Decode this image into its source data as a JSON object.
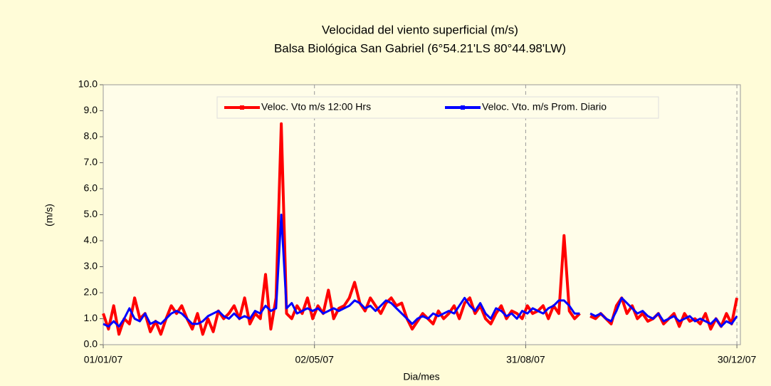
{
  "chart_data": {
    "type": "line",
    "title": "Velocidad del viento superficial  (m/s)",
    "subtitle": "Balsa  Biológica San Gabriel (6°54.21'LS 80°44.98'LW)",
    "xlabel": "Dia/mes",
    "ylabel": "(m/s)",
    "x": [
      1,
      4,
      7,
      10,
      13,
      16,
      19,
      22,
      25,
      28,
      31,
      34,
      37,
      40,
      43,
      46,
      49,
      52,
      55,
      58,
      61,
      64,
      67,
      70,
      73,
      76,
      79,
      82,
      85,
      88,
      91,
      94,
      97,
      100,
      103,
      106,
      109,
      112,
      115,
      118,
      121,
      124,
      127,
      130,
      133,
      136,
      139,
      142,
      145,
      148,
      151,
      154,
      157,
      160,
      163,
      166,
      169,
      172,
      175,
      178,
      181,
      184,
      187,
      190,
      193,
      196,
      199,
      202,
      205,
      208,
      211,
      214,
      217,
      220,
      223,
      226,
      229,
      232,
      235,
      238,
      241,
      244,
      247,
      250,
      253,
      256,
      259,
      262,
      265,
      268,
      271,
      274,
      277,
      280,
      283,
      286,
      289,
      292,
      295,
      298,
      301,
      304,
      307,
      310,
      313,
      316,
      319,
      322,
      325,
      328,
      331,
      334,
      337,
      340,
      343,
      346,
      349,
      352,
      355,
      358,
      361,
      364
    ],
    "series": [
      {
        "name": "Veloc. Vto m/s 12:00 Hrs",
        "color": "#ff0000",
        "values": [
          1.2,
          0.6,
          1.5,
          0.4,
          1.0,
          0.8,
          1.8,
          1.0,
          1.2,
          0.5,
          0.9,
          0.4,
          1.0,
          1.5,
          1.2,
          1.5,
          1.0,
          0.6,
          1.2,
          0.4,
          1.0,
          0.5,
          1.3,
          1.0,
          1.2,
          1.5,
          1.0,
          1.8,
          0.8,
          1.2,
          1.0,
          2.7,
          0.6,
          1.8,
          8.5,
          1.2,
          1.0,
          1.5,
          1.2,
          1.8,
          1.0,
          1.5,
          1.2,
          2.1,
          1.0,
          1.4,
          1.5,
          1.8,
          2.4,
          1.6,
          1.3,
          1.8,
          1.5,
          1.2,
          1.6,
          1.8,
          1.5,
          1.6,
          1.0,
          0.6,
          0.9,
          1.2,
          1.0,
          0.8,
          1.3,
          1.0,
          1.2,
          1.5,
          1.0,
          1.6,
          1.8,
          1.2,
          1.5,
          1.0,
          0.8,
          1.2,
          1.5,
          1.0,
          1.3,
          1.2,
          1.0,
          1.5,
          1.2,
          1.3,
          1.5,
          1.0,
          1.5,
          1.2,
          4.2,
          1.3,
          1.0,
          1.2,
          null,
          1.1,
          1.0,
          1.2,
          1.0,
          0.8,
          1.5,
          1.8,
          1.2,
          1.5,
          1.0,
          1.2,
          0.9,
          1.0,
          1.2,
          0.8,
          1.0,
          1.2,
          0.7,
          1.2,
          0.9,
          1.0,
          0.8,
          1.2,
          0.6,
          1.0,
          0.7,
          1.2,
          0.8,
          1.8
        ]
      },
      {
        "name": "Veloc. Vto. m/s Prom. Diario",
        "color": "#0000ff",
        "values": [
          0.8,
          0.7,
          0.9,
          0.7,
          1.0,
          1.4,
          1.0,
          0.9,
          1.2,
          0.8,
          0.9,
          0.8,
          1.0,
          1.2,
          1.3,
          1.2,
          1.0,
          0.8,
          0.8,
          0.9,
          1.1,
          1.2,
          1.3,
          1.1,
          1.0,
          1.2,
          1.0,
          1.1,
          1.0,
          1.3,
          1.2,
          1.5,
          1.3,
          1.4,
          5.0,
          1.4,
          1.6,
          1.2,
          1.3,
          1.4,
          1.3,
          1.4,
          1.2,
          1.3,
          1.4,
          1.3,
          1.4,
          1.5,
          1.7,
          1.6,
          1.4,
          1.5,
          1.3,
          1.5,
          1.7,
          1.6,
          1.4,
          1.2,
          1.0,
          0.8,
          1.0,
          1.1,
          1.0,
          1.2,
          1.1,
          1.2,
          1.3,
          1.2,
          1.5,
          1.8,
          1.5,
          1.3,
          1.6,
          1.2,
          1.0,
          1.4,
          1.3,
          1.1,
          1.2,
          1.0,
          1.3,
          1.2,
          1.4,
          1.3,
          1.2,
          1.4,
          1.5,
          1.7,
          1.7,
          1.5,
          1.2,
          1.2,
          null,
          1.2,
          1.1,
          1.2,
          1.0,
          0.9,
          1.3,
          1.8,
          1.6,
          1.4,
          1.2,
          1.3,
          1.1,
          1.0,
          1.2,
          0.9,
          1.0,
          1.1,
          0.9,
          1.0,
          1.1,
          0.9,
          1.0,
          0.9,
          0.8,
          1.0,
          0.7,
          0.9,
          0.8,
          1.1
        ]
      }
    ],
    "xlim": [
      1,
      366
    ],
    "xticks": [
      {
        "value": 1,
        "label": "01/01/07"
      },
      {
        "value": 122,
        "label": "02/05/07"
      },
      {
        "value": 243,
        "label": "31/08/07"
      },
      {
        "value": 364,
        "label": "30/12/07"
      }
    ],
    "ylim": [
      0,
      10
    ],
    "yticks": [
      {
        "value": 0,
        "label": "0.0"
      },
      {
        "value": 1,
        "label": "1.0"
      },
      {
        "value": 2,
        "label": "2.0"
      },
      {
        "value": 3,
        "label": "3.0"
      },
      {
        "value": 4,
        "label": "4.0"
      },
      {
        "value": 5,
        "label": "5.0"
      },
      {
        "value": 6,
        "label": "6.0"
      },
      {
        "value": 7,
        "label": "7.0"
      },
      {
        "value": 8,
        "label": "8.0"
      },
      {
        "value": 9,
        "label": "9.0"
      },
      {
        "value": 10,
        "label": "10.0"
      }
    ],
    "xgrid": true,
    "legend": "top"
  }
}
